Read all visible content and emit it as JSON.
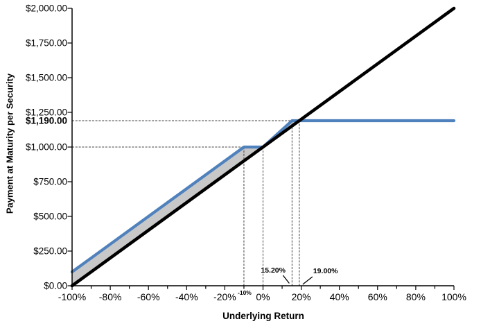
{
  "chart_data": {
    "type": "line",
    "title": "",
    "xlabel": "Underlying Return",
    "ylabel": "Payment at Maturity per Security",
    "xlim": [
      -100,
      100
    ],
    "ylim": [
      0,
      2000
    ],
    "grid": false,
    "legend": false,
    "axis_color": "#000000",
    "guide_color": "#3f3f3f",
    "x_ticks": [
      -100,
      -80,
      -60,
      -40,
      -20,
      0,
      20,
      40,
      60,
      80,
      100
    ],
    "x_tick_labels": [
      "-100%",
      "-80%",
      "-60%",
      "-40%",
      "-20%",
      "0%",
      "20%",
      "40%",
      "60%",
      "80%",
      "100%"
    ],
    "x_minor_tick_step": 10,
    "y_ticks": [
      0,
      250,
      500,
      750,
      1000,
      1250,
      1500,
      1750,
      2000
    ],
    "y_tick_labels": [
      "$0.00",
      "$250.00",
      "$500.00",
      "$750.00",
      "$1,000.00",
      "$1,250.00",
      "$1,500.00",
      "$1,750.00",
      "$2,000.00"
    ],
    "y_key_value": {
      "value": 1190,
      "label": "$1,190.00"
    },
    "series": [
      {
        "name": "payment-at-maturity-line",
        "color": "#4F81BD",
        "width": 4.2,
        "points": [
          [
            -100,
            100
          ],
          [
            -10,
            1000
          ],
          [
            0,
            1000
          ],
          [
            15.2,
            1190
          ],
          [
            100,
            1190
          ]
        ]
      },
      {
        "name": "underlying-return-line",
        "color": "#000000",
        "width": 4.6,
        "points": [
          [
            -100,
            0
          ],
          [
            100,
            2000
          ]
        ]
      }
    ],
    "fill_between": {
      "color": "#C8C8C8",
      "polygon": [
        [
          -100,
          100
        ],
        [
          -10,
          1000
        ],
        [
          0,
          1000
        ],
        [
          15.2,
          1190
        ],
        [
          19,
          1190
        ],
        [
          -100,
          0
        ]
      ]
    },
    "guide_lines": {
      "horizontal": [
        {
          "y": 1000,
          "x_from": -100,
          "x_to": -10
        },
        {
          "y": 1190,
          "x_from": -100,
          "x_to": 19
        }
      ],
      "vertical": [
        {
          "x": -10,
          "y_from": 0,
          "y_to": 1000
        },
        {
          "x": 0,
          "y_from": 0,
          "y_to": 1000
        },
        {
          "x": 15.2,
          "y_from": 0,
          "y_to": 1190
        },
        {
          "x": 19,
          "y_from": 0,
          "y_to": 1190
        }
      ]
    },
    "annotations": [
      {
        "text": "15.20%",
        "x": 15.2
      },
      {
        "text": "19.00%",
        "x": 19
      },
      {
        "text": "-10%",
        "x": -10
      }
    ]
  }
}
